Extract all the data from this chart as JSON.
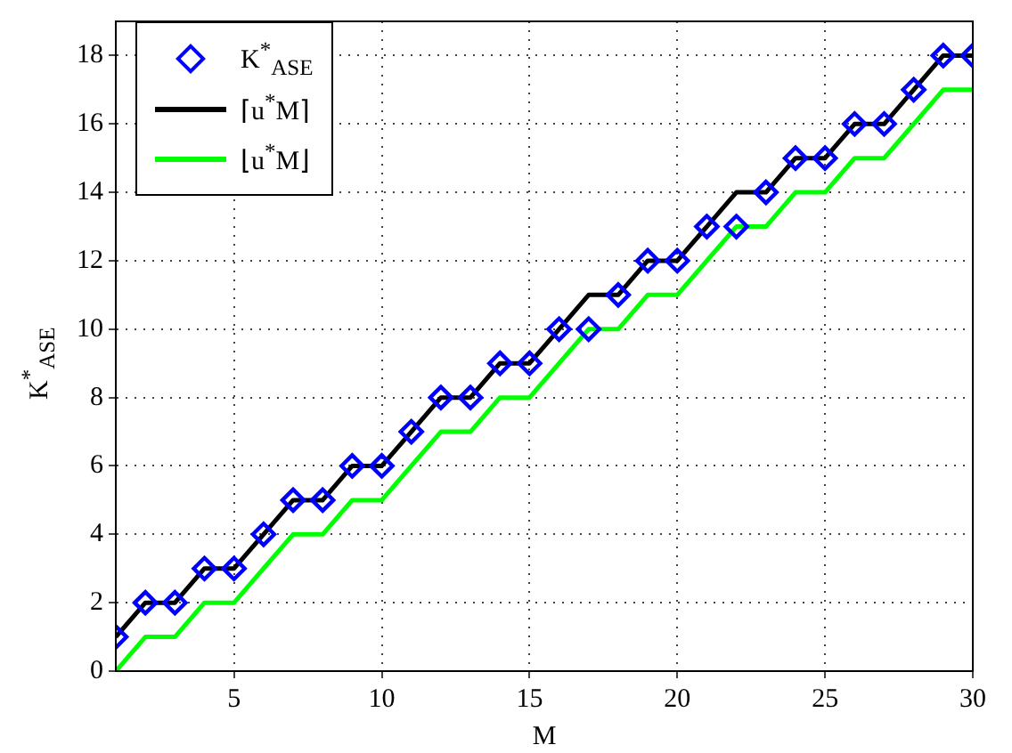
{
  "chart_data": {
    "type": "line",
    "xlabel": "M",
    "ylabel": "K$^{*}$$_{ASE}$",
    "x": [
      1,
      2,
      3,
      4,
      5,
      6,
      7,
      8,
      9,
      10,
      11,
      12,
      13,
      14,
      15,
      16,
      17,
      18,
      19,
      20,
      21,
      22,
      23,
      24,
      25,
      26,
      27,
      28,
      29,
      30
    ],
    "series": [
      {
        "name": "K$^{*}$$_{ASE}$",
        "type": "scatter",
        "marker": "diamond",
        "color": "#0000ff",
        "values": [
          1,
          2,
          2,
          3,
          3,
          4,
          5,
          5,
          6,
          6,
          7,
          8,
          8,
          9,
          9,
          10,
          10,
          11,
          12,
          12,
          13,
          13,
          14,
          15,
          15,
          16,
          16,
          17,
          18,
          18
        ]
      },
      {
        "name": "⌈u$^{*}$M⌉",
        "type": "line",
        "marker": "none",
        "color": "#000000",
        "values": [
          1,
          2,
          2,
          3,
          3,
          4,
          5,
          5,
          6,
          6,
          7,
          8,
          8,
          9,
          9,
          10,
          11,
          11,
          12,
          12,
          13,
          14,
          14,
          15,
          15,
          16,
          16,
          17,
          18,
          18
        ]
      },
      {
        "name": "⌊u$^{*}$M⌋",
        "type": "line",
        "marker": "none",
        "color": "#00ff00",
        "values": [
          0,
          1,
          1,
          2,
          2,
          3,
          4,
          4,
          5,
          5,
          6,
          7,
          7,
          8,
          8,
          9,
          10,
          10,
          11,
          11,
          12,
          13,
          13,
          14,
          14,
          15,
          15,
          16,
          17,
          17
        ]
      }
    ],
    "xlim": [
      1,
      30
    ],
    "xticks": [
      5,
      10,
      15,
      20,
      25,
      30
    ],
    "ylim": [
      0,
      19
    ],
    "yticks": [
      0,
      2,
      4,
      6,
      8,
      10,
      12,
      14,
      16,
      18
    ],
    "grid": true,
    "legend": "top left",
    "line_style": "solid"
  }
}
